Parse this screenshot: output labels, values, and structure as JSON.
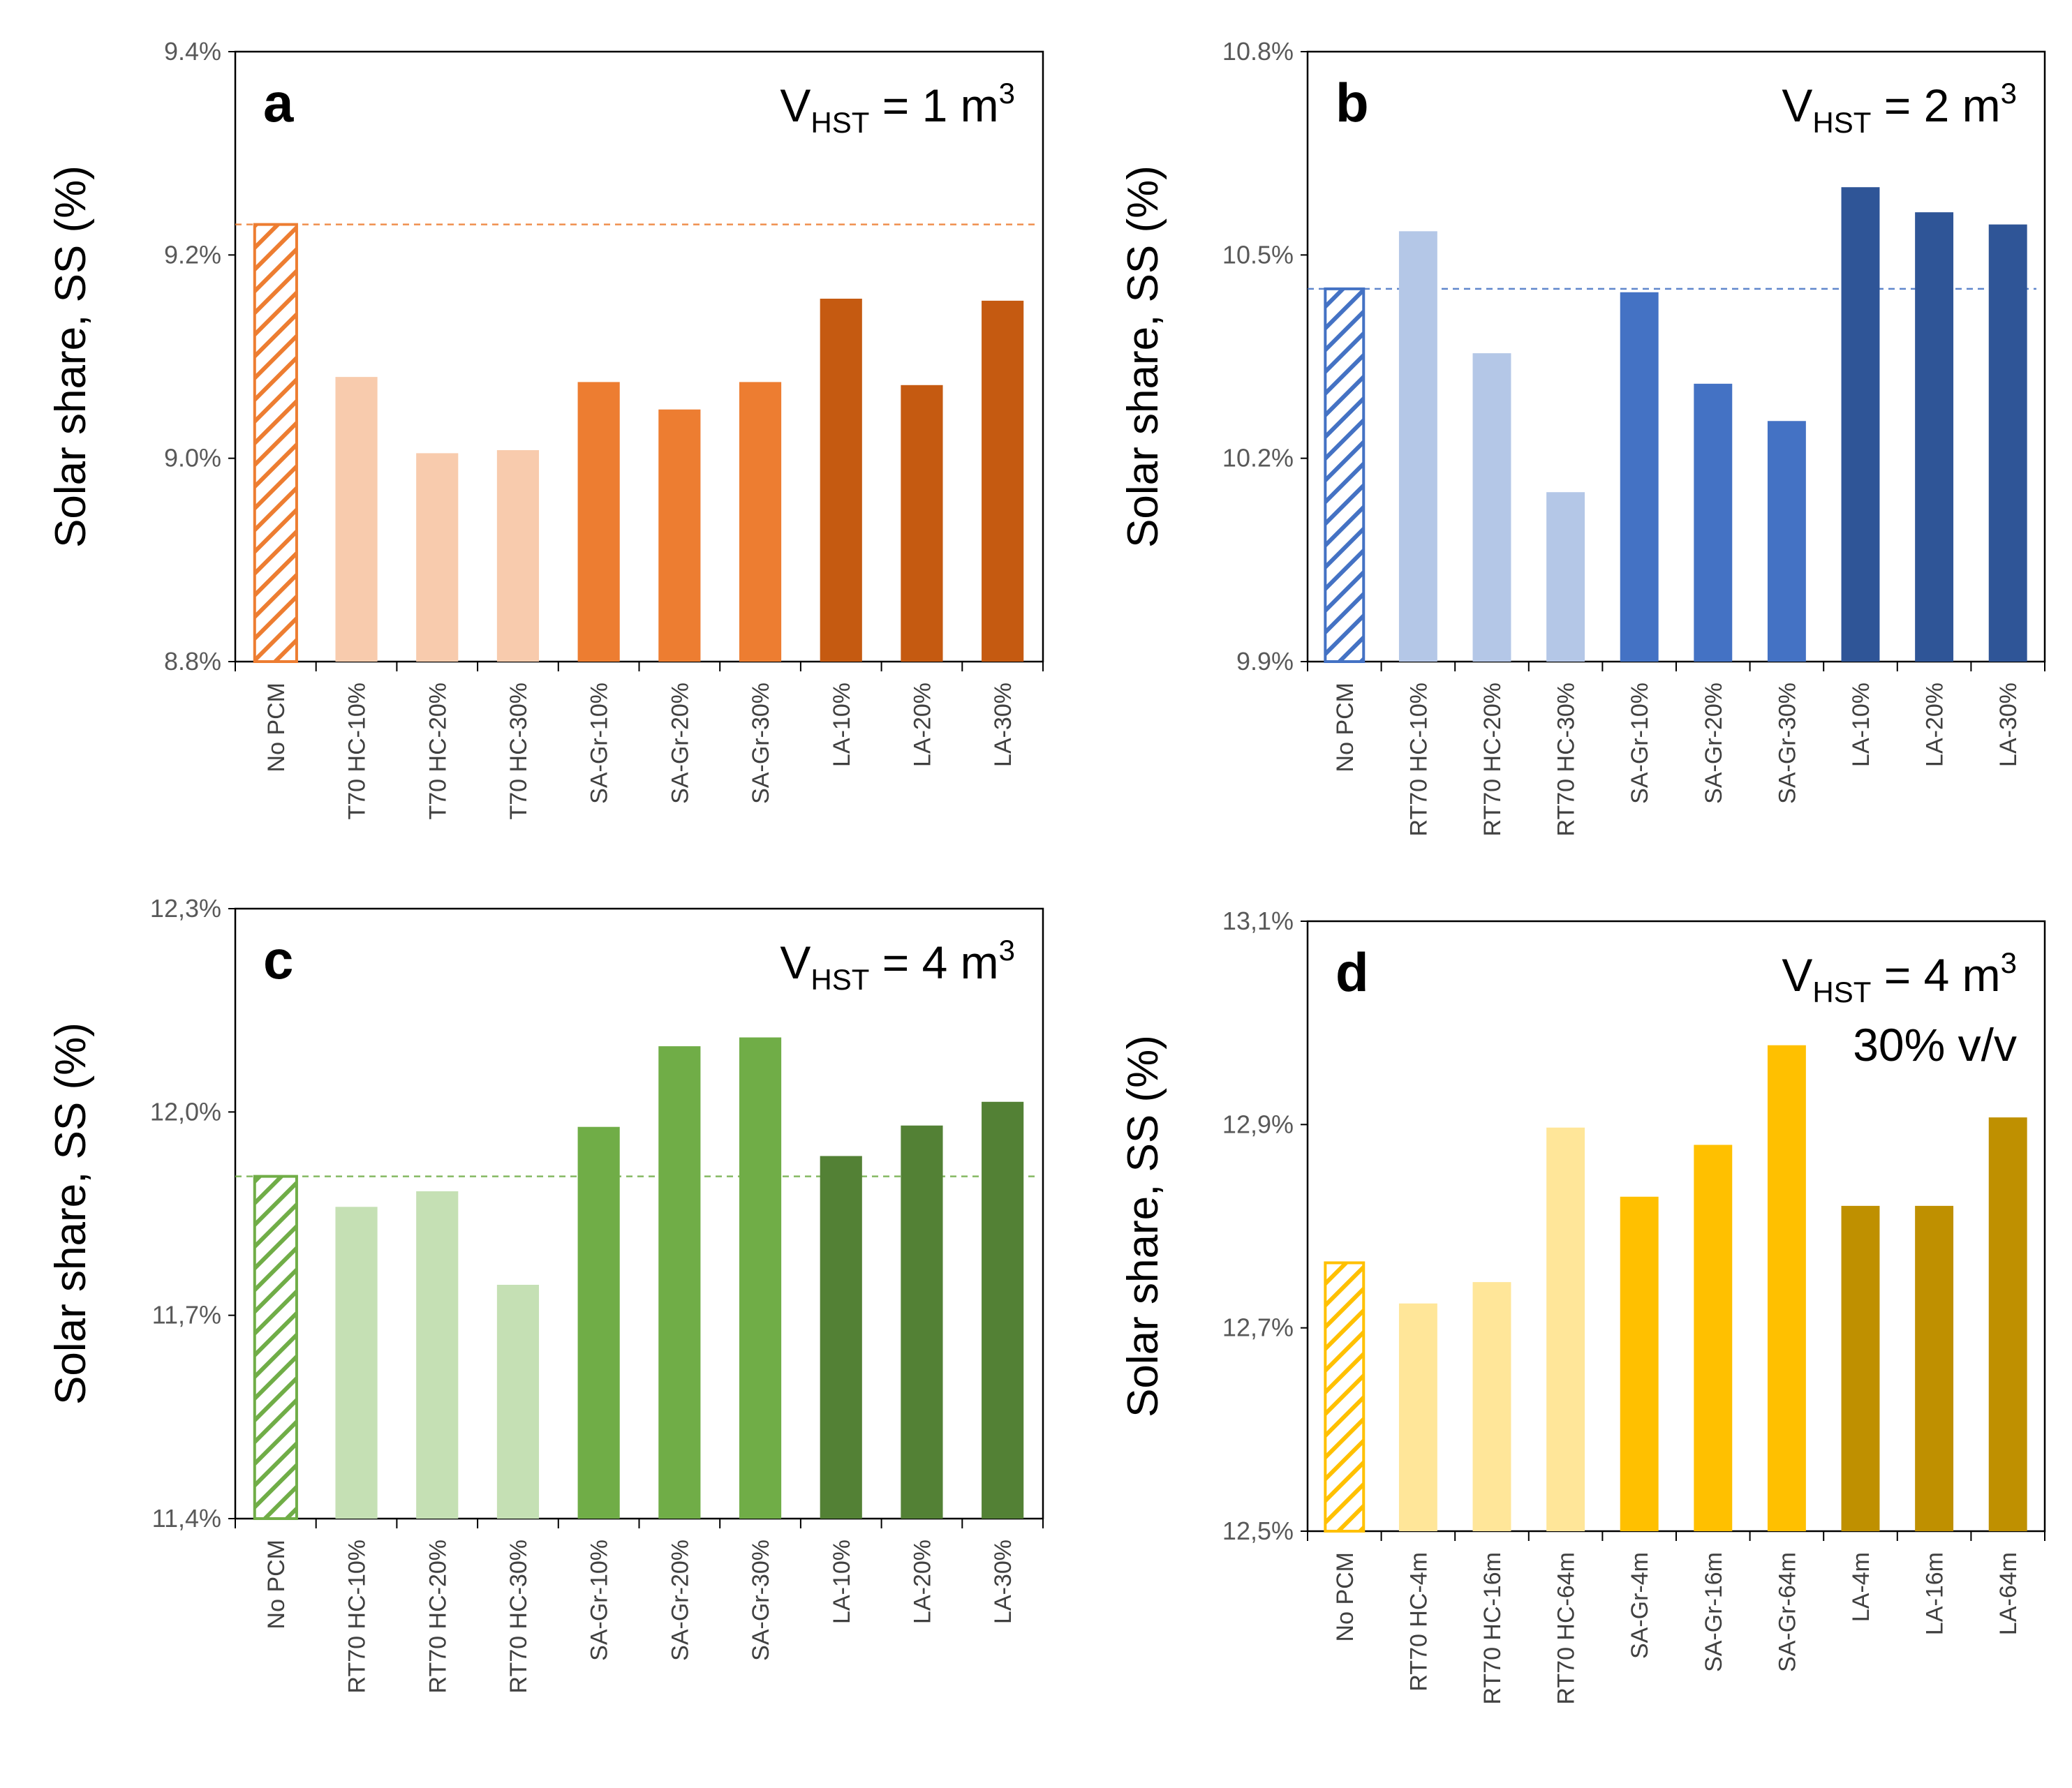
{
  "figure": {
    "colors": {
      "orange": {
        "light": "#F8CBAD",
        "mid": "#ED7D31",
        "dark": "#C55A11"
      },
      "blue": {
        "light": "#B4C7E7",
        "mid": "#4472C4",
        "dark": "#2F5597"
      },
      "green": {
        "light": "#C5E0B4",
        "mid": "#70AD47",
        "dark": "#538135"
      },
      "gold": {
        "light": "#FFE699",
        "mid": "#FFC000",
        "dark": "#BF9000"
      }
    }
  },
  "chart_data": [
    {
      "panel": "a",
      "type": "bar",
      "color_theme": "orange",
      "annotation": {
        "prefix": "V",
        "sub": "HST",
        "mid": " = 1 m",
        "sup": "3",
        "line2": ""
      },
      "ylabel": "Solar share, SS (%)",
      "ylim": [
        8.8,
        9.4
      ],
      "yticks": [
        "8.8%",
        "9.0%",
        "9.2%",
        "9.4%"
      ],
      "ytick_values": [
        8.8,
        9.0,
        9.2,
        9.4
      ],
      "reference_value": 9.23,
      "categories": [
        "No PCM",
        "T70 HC-10%",
        "T70 HC-20%",
        "T70 HC-30%",
        "SA-Gr-10%",
        "SA-Gr-20%",
        "SA-Gr-30%",
        "LA-10%",
        "LA-20%",
        "LA-30%"
      ],
      "values": [
        9.23,
        9.08,
        9.005,
        9.008,
        9.075,
        9.048,
        9.075,
        9.157,
        9.072,
        9.155
      ]
    },
    {
      "panel": "b",
      "type": "bar",
      "color_theme": "blue",
      "annotation": {
        "prefix": "V",
        "sub": "HST",
        "mid": " = 2 m",
        "sup": "3",
        "line2": ""
      },
      "ylabel": "Solar share, SS (%)",
      "ylim": [
        9.9,
        10.8
      ],
      "yticks": [
        "9.9%",
        "10.2%",
        "10.5%",
        "10.8%"
      ],
      "ytick_values": [
        9.9,
        10.2,
        10.5,
        10.8
      ],
      "reference_value": 10.45,
      "categories": [
        "No PCM",
        "RT70 HC-10%",
        "RT70 HC-20%",
        "RT70 HC-30%",
        "SA-Gr-10%",
        "SA-Gr-20%",
        "SA-Gr-30%",
        "LA-10%",
        "LA-20%",
        "LA-30%"
      ],
      "values": [
        10.45,
        10.535,
        10.355,
        10.15,
        10.445,
        10.31,
        10.255,
        10.6,
        10.563,
        10.545
      ]
    },
    {
      "panel": "c",
      "type": "bar",
      "color_theme": "green",
      "annotation": {
        "prefix": "V",
        "sub": "HST",
        "mid": " = 4 m",
        "sup": "3",
        "line2": ""
      },
      "ylabel": "Solar share, SS (%)",
      "ylim": [
        11.4,
        12.3
      ],
      "yticks": [
        "11,4%",
        "11,7%",
        "12,0%",
        "12,3%"
      ],
      "ytick_values": [
        11.4,
        11.7,
        12.0,
        12.3
      ],
      "reference_value": 11.905,
      "categories": [
        "No PCM",
        "RT70 HC-10%",
        "RT70 HC-20%",
        "RT70 HC-30%",
        "SA-Gr-10%",
        "SA-Gr-20%",
        "SA-Gr-30%",
        "LA-10%",
        "LA-20%",
        "LA-30%"
      ],
      "values": [
        11.905,
        11.86,
        11.883,
        11.745,
        11.978,
        12.097,
        12.11,
        11.935,
        11.98,
        12.015
      ]
    },
    {
      "panel": "d",
      "type": "bar",
      "color_theme": "gold",
      "annotation": {
        "prefix": "V",
        "sub": "HST",
        "mid": " = 4 m",
        "sup": "3",
        "line2": "30% v/v"
      },
      "ylabel": "Solar share, SS (%)",
      "ylim": [
        12.5,
        13.1
      ],
      "yticks": [
        "12,5%",
        "12,7%",
        "12,9%",
        "13,1%"
      ],
      "ytick_values": [
        12.5,
        12.7,
        12.9,
        13.1
      ],
      "reference_value": null,
      "categories": [
        "No PCM",
        "RT70 HC-4m",
        "RT70 HC-16m",
        "RT70 HC-64m",
        "SA-Gr-4m",
        "SA-Gr-16m",
        "SA-Gr-64m",
        "LA-4m",
        "LA-16m",
        "LA-64m"
      ],
      "values": [
        12.764,
        12.724,
        12.745,
        12.897,
        12.829,
        12.88,
        12.978,
        12.82,
        12.82,
        12.907
      ]
    }
  ]
}
